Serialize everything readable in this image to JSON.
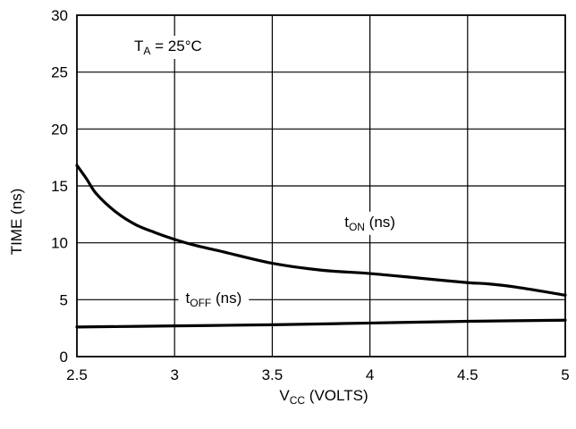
{
  "chart_data": {
    "type": "line",
    "xlabel": {
      "main": "V",
      "sub": "CC",
      "rest": " (VOLTS)"
    },
    "ylabel": "TIME (ns)",
    "xlim": [
      2.5,
      5
    ],
    "ylim": [
      0,
      30
    ],
    "x_ticks": [
      "2.5",
      "3",
      "3.5",
      "4",
      "4.5",
      "5"
    ],
    "y_ticks": [
      "0",
      "5",
      "10",
      "15",
      "20",
      "25",
      "30"
    ],
    "grid": true,
    "annotation": {
      "main": "T",
      "sub": "A",
      "rest": " = 25°C"
    },
    "series": [
      {
        "name": {
          "main": "t",
          "sub": "ON",
          "rest": " (ns)"
        },
        "x": [
          2.5,
          2.55,
          2.6,
          2.7,
          2.8,
          2.9,
          3.0,
          3.1,
          3.25,
          3.5,
          3.75,
          4.0,
          4.25,
          4.5,
          4.6,
          4.75,
          5.0
        ],
        "y": [
          16.8,
          15.6,
          14.3,
          12.7,
          11.6,
          10.9,
          10.3,
          9.8,
          9.2,
          8.2,
          7.6,
          7.3,
          6.9,
          6.5,
          6.4,
          6.1,
          5.4
        ]
      },
      {
        "name": {
          "main": "t",
          "sub": "OFF",
          "rest": " (ns)"
        },
        "x": [
          2.5,
          3.0,
          3.5,
          4.0,
          4.5,
          5.0
        ],
        "y": [
          2.6,
          2.7,
          2.8,
          2.95,
          3.1,
          3.2
        ]
      }
    ]
  }
}
